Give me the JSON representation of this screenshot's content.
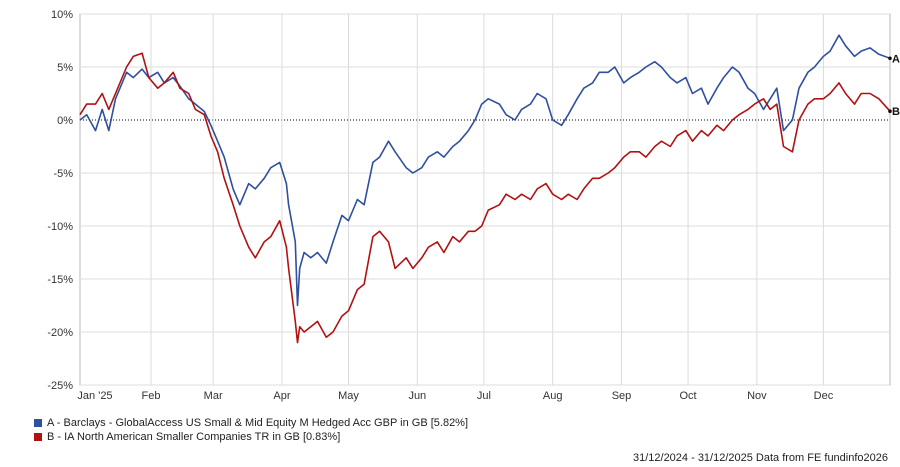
{
  "chart_data": {
    "type": "line",
    "yticks": [
      "10%",
      "5%",
      "0%",
      "-5%",
      "-10%",
      "-15%",
      "-20%",
      "-25%"
    ],
    "ylim": [
      -25,
      10
    ],
    "x_categories": [
      "Jan '25",
      "Feb",
      "Mar",
      "Apr",
      "May",
      "Jun",
      "Jul",
      "Aug",
      "Sep",
      "Oct",
      "Nov",
      "Dec"
    ],
    "grid": true,
    "zero_line": "dotted",
    "series": [
      {
        "name": "A - Barclays - GlobalAccess US Small & Mid Equity M Hedged Acc GBP in GB [5.82%]",
        "end_label": "A",
        "color": "#2f4f9f",
        "points": [
          [
            "2024-12-31",
            0.0
          ],
          [
            "2025-01-03",
            0.5
          ],
          [
            "2025-01-07",
            -1.0
          ],
          [
            "2025-01-10",
            1.0
          ],
          [
            "2025-01-13",
            -1.0
          ],
          [
            "2025-01-16",
            2.0
          ],
          [
            "2025-01-21",
            4.5
          ],
          [
            "2025-01-24",
            4.0
          ],
          [
            "2025-01-28",
            4.8
          ],
          [
            "2025-01-31",
            4.0
          ],
          [
            "2025-02-04",
            4.5
          ],
          [
            "2025-02-07",
            3.5
          ],
          [
            "2025-02-11",
            4.0
          ],
          [
            "2025-02-14",
            3.2
          ],
          [
            "2025-02-18",
            2.0
          ],
          [
            "2025-02-21",
            1.5
          ],
          [
            "2025-02-25",
            0.8
          ],
          [
            "2025-02-28",
            -0.5
          ],
          [
            "2025-03-03",
            -2.0
          ],
          [
            "2025-03-06",
            -3.5
          ],
          [
            "2025-03-10",
            -6.5
          ],
          [
            "2025-03-13",
            -8.0
          ],
          [
            "2025-03-17",
            -6.0
          ],
          [
            "2025-03-20",
            -6.5
          ],
          [
            "2025-03-24",
            -5.5
          ],
          [
            "2025-03-27",
            -4.5
          ],
          [
            "2025-03-31",
            -4.0
          ],
          [
            "2025-04-03",
            -6.0
          ],
          [
            "2025-04-04",
            -8.0
          ],
          [
            "2025-04-07",
            -11.5
          ],
          [
            "2025-04-08",
            -17.5
          ],
          [
            "2025-04-09",
            -14.0
          ],
          [
            "2025-04-11",
            -12.5
          ],
          [
            "2025-04-14",
            -13.0
          ],
          [
            "2025-04-17",
            -12.5
          ],
          [
            "2025-04-21",
            -13.5
          ],
          [
            "2025-04-24",
            -11.5
          ],
          [
            "2025-04-28",
            -9.0
          ],
          [
            "2025-05-01",
            -9.5
          ],
          [
            "2025-05-05",
            -7.5
          ],
          [
            "2025-05-08",
            -8.0
          ],
          [
            "2025-05-12",
            -4.0
          ],
          [
            "2025-05-15",
            -3.5
          ],
          [
            "2025-05-19",
            -2.0
          ],
          [
            "2025-05-22",
            -3.0
          ],
          [
            "2025-05-27",
            -4.5
          ],
          [
            "2025-05-30",
            -5.0
          ],
          [
            "2025-06-03",
            -4.5
          ],
          [
            "2025-06-06",
            -3.5
          ],
          [
            "2025-06-10",
            -3.0
          ],
          [
            "2025-06-13",
            -3.5
          ],
          [
            "2025-06-17",
            -2.5
          ],
          [
            "2025-06-20",
            -2.0
          ],
          [
            "2025-06-24",
            -1.0
          ],
          [
            "2025-06-27",
            0.0
          ],
          [
            "2025-06-30",
            1.5
          ],
          [
            "2025-07-03",
            2.0
          ],
          [
            "2025-07-08",
            1.5
          ],
          [
            "2025-07-11",
            0.5
          ],
          [
            "2025-07-15",
            0.0
          ],
          [
            "2025-07-18",
            1.0
          ],
          [
            "2025-07-22",
            1.5
          ],
          [
            "2025-07-25",
            2.5
          ],
          [
            "2025-07-29",
            2.0
          ],
          [
            "2025-08-01",
            0.0
          ],
          [
            "2025-08-05",
            -0.5
          ],
          [
            "2025-08-08",
            0.5
          ],
          [
            "2025-08-12",
            2.0
          ],
          [
            "2025-08-15",
            3.0
          ],
          [
            "2025-08-19",
            3.5
          ],
          [
            "2025-08-22",
            4.5
          ],
          [
            "2025-08-26",
            4.5
          ],
          [
            "2025-08-29",
            5.0
          ],
          [
            "2025-09-02",
            3.5
          ],
          [
            "2025-09-05",
            4.0
          ],
          [
            "2025-09-09",
            4.5
          ],
          [
            "2025-09-12",
            5.0
          ],
          [
            "2025-09-16",
            5.5
          ],
          [
            "2025-09-19",
            5.0
          ],
          [
            "2025-09-23",
            4.0
          ],
          [
            "2025-09-26",
            3.5
          ],
          [
            "2025-09-30",
            4.0
          ],
          [
            "2025-10-03",
            2.5
          ],
          [
            "2025-10-07",
            3.0
          ],
          [
            "2025-10-10",
            1.5
          ],
          [
            "2025-10-14",
            3.0
          ],
          [
            "2025-10-17",
            4.0
          ],
          [
            "2025-10-21",
            5.0
          ],
          [
            "2025-10-24",
            4.5
          ],
          [
            "2025-10-28",
            3.0
          ],
          [
            "2025-10-31",
            2.5
          ],
          [
            "2025-11-04",
            1.0
          ],
          [
            "2025-11-07",
            2.0
          ],
          [
            "2025-11-10",
            3.0
          ],
          [
            "2025-11-13",
            -1.0
          ],
          [
            "2025-11-17",
            0.0
          ],
          [
            "2025-11-20",
            3.0
          ],
          [
            "2025-11-24",
            4.5
          ],
          [
            "2025-11-27",
            5.0
          ],
          [
            "2025-12-01",
            6.0
          ],
          [
            "2025-12-04",
            6.5
          ],
          [
            "2025-12-08",
            8.0
          ],
          [
            "2025-12-11",
            7.0
          ],
          [
            "2025-12-15",
            6.0
          ],
          [
            "2025-12-18",
            6.5
          ],
          [
            "2025-12-22",
            6.8
          ],
          [
            "2025-12-26",
            6.2
          ],
          [
            "2025-12-31",
            5.82
          ]
        ]
      },
      {
        "name": "B - IA North American Smaller Companies TR in GB [0.83%]",
        "end_label": "B",
        "color": "#b01212",
        "points": [
          [
            "2024-12-31",
            0.5
          ],
          [
            "2025-01-03",
            1.5
          ],
          [
            "2025-01-07",
            1.5
          ],
          [
            "2025-01-10",
            2.5
          ],
          [
            "2025-01-13",
            1.0
          ],
          [
            "2025-01-16",
            2.5
          ],
          [
            "2025-01-21",
            5.0
          ],
          [
            "2025-01-24",
            6.0
          ],
          [
            "2025-01-28",
            6.3
          ],
          [
            "2025-01-31",
            4.0
          ],
          [
            "2025-02-04",
            3.0
          ],
          [
            "2025-02-07",
            3.5
          ],
          [
            "2025-02-11",
            4.5
          ],
          [
            "2025-02-14",
            3.0
          ],
          [
            "2025-02-18",
            2.5
          ],
          [
            "2025-02-21",
            1.0
          ],
          [
            "2025-02-25",
            0.5
          ],
          [
            "2025-02-28",
            -1.5
          ],
          [
            "2025-03-03",
            -3.0
          ],
          [
            "2025-03-06",
            -5.5
          ],
          [
            "2025-03-10",
            -8.0
          ],
          [
            "2025-03-13",
            -10.0
          ],
          [
            "2025-03-17",
            -12.0
          ],
          [
            "2025-03-20",
            -13.0
          ],
          [
            "2025-03-24",
            -11.5
          ],
          [
            "2025-03-27",
            -11.0
          ],
          [
            "2025-03-31",
            -9.5
          ],
          [
            "2025-04-03",
            -12.0
          ],
          [
            "2025-04-04",
            -14.0
          ],
          [
            "2025-04-07",
            -19.0
          ],
          [
            "2025-04-08",
            -21.0
          ],
          [
            "2025-04-09",
            -19.5
          ],
          [
            "2025-04-11",
            -20.0
          ],
          [
            "2025-04-14",
            -19.5
          ],
          [
            "2025-04-17",
            -19.0
          ],
          [
            "2025-04-21",
            -20.5
          ],
          [
            "2025-04-24",
            -20.0
          ],
          [
            "2025-04-28",
            -18.5
          ],
          [
            "2025-05-01",
            -18.0
          ],
          [
            "2025-05-05",
            -16.0
          ],
          [
            "2025-05-08",
            -15.5
          ],
          [
            "2025-05-12",
            -11.0
          ],
          [
            "2025-05-15",
            -10.5
          ],
          [
            "2025-05-19",
            -11.5
          ],
          [
            "2025-05-22",
            -14.0
          ],
          [
            "2025-05-27",
            -13.0
          ],
          [
            "2025-05-30",
            -14.0
          ],
          [
            "2025-06-03",
            -13.0
          ],
          [
            "2025-06-06",
            -12.0
          ],
          [
            "2025-06-10",
            -11.5
          ],
          [
            "2025-06-13",
            -12.5
          ],
          [
            "2025-06-17",
            -11.0
          ],
          [
            "2025-06-20",
            -11.5
          ],
          [
            "2025-06-24",
            -10.5
          ],
          [
            "2025-06-27",
            -10.5
          ],
          [
            "2025-06-30",
            -10.0
          ],
          [
            "2025-07-03",
            -8.5
          ],
          [
            "2025-07-08",
            -8.0
          ],
          [
            "2025-07-11",
            -7.0
          ],
          [
            "2025-07-15",
            -7.5
          ],
          [
            "2025-07-18",
            -7.0
          ],
          [
            "2025-07-22",
            -7.5
          ],
          [
            "2025-07-25",
            -6.5
          ],
          [
            "2025-07-29",
            -6.0
          ],
          [
            "2025-08-01",
            -7.0
          ],
          [
            "2025-08-05",
            -7.5
          ],
          [
            "2025-08-08",
            -7.0
          ],
          [
            "2025-08-12",
            -7.5
          ],
          [
            "2025-08-15",
            -6.5
          ],
          [
            "2025-08-19",
            -5.5
          ],
          [
            "2025-08-22",
            -5.5
          ],
          [
            "2025-08-26",
            -5.0
          ],
          [
            "2025-08-29",
            -4.5
          ],
          [
            "2025-09-02",
            -3.5
          ],
          [
            "2025-09-05",
            -3.0
          ],
          [
            "2025-09-09",
            -3.0
          ],
          [
            "2025-09-12",
            -3.5
          ],
          [
            "2025-09-16",
            -2.5
          ],
          [
            "2025-09-19",
            -2.0
          ],
          [
            "2025-09-23",
            -2.5
          ],
          [
            "2025-09-26",
            -1.5
          ],
          [
            "2025-09-30",
            -1.0
          ],
          [
            "2025-10-03",
            -2.0
          ],
          [
            "2025-10-07",
            -1.0
          ],
          [
            "2025-10-10",
            -1.5
          ],
          [
            "2025-10-14",
            -0.5
          ],
          [
            "2025-10-17",
            -1.0
          ],
          [
            "2025-10-21",
            0.0
          ],
          [
            "2025-10-24",
            0.5
          ],
          [
            "2025-10-28",
            1.0
          ],
          [
            "2025-10-31",
            1.5
          ],
          [
            "2025-11-04",
            2.0
          ],
          [
            "2025-11-07",
            1.0
          ],
          [
            "2025-11-10",
            1.5
          ],
          [
            "2025-11-13",
            -2.5
          ],
          [
            "2025-11-17",
            -3.0
          ],
          [
            "2025-11-20",
            0.0
          ],
          [
            "2025-11-24",
            1.5
          ],
          [
            "2025-11-27",
            2.0
          ],
          [
            "2025-12-01",
            2.0
          ],
          [
            "2025-12-04",
            2.5
          ],
          [
            "2025-12-08",
            3.5
          ],
          [
            "2025-12-11",
            2.5
          ],
          [
            "2025-12-15",
            1.5
          ],
          [
            "2025-12-18",
            2.5
          ],
          [
            "2025-12-22",
            2.5
          ],
          [
            "2025-12-26",
            2.0
          ],
          [
            "2025-12-31",
            0.83
          ]
        ]
      }
    ]
  },
  "footer": {
    "text": "31/12/2024 - 31/12/2025 Data from FE fundinfo2026"
  }
}
